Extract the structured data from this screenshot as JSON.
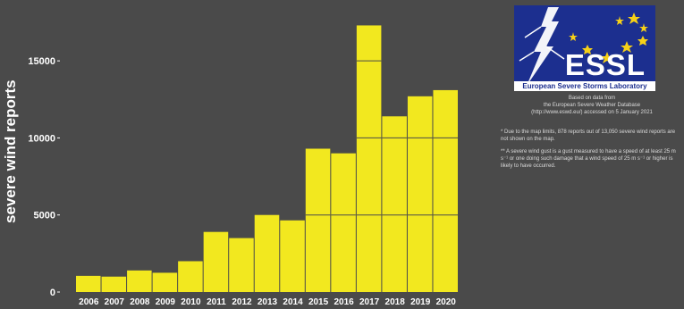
{
  "chart_data": {
    "type": "bar",
    "categories": [
      "2006",
      "2007",
      "2008",
      "2009",
      "2010",
      "2011",
      "2012",
      "2013",
      "2014",
      "2015",
      "2016",
      "2017",
      "2018",
      "2019",
      "2020"
    ],
    "values": [
      1050,
      1000,
      1400,
      1250,
      2000,
      3900,
      3500,
      5000,
      4650,
      9300,
      9000,
      17300,
      11400,
      12700,
      13100
    ],
    "ylabel": "severe wind reports",
    "xlabel": "",
    "title": "",
    "yticks": [
      0,
      5000,
      10000,
      15000
    ],
    "ytick_labels": [
      "0",
      "5000",
      "10000",
      "15000"
    ],
    "ylim": [
      0,
      17500
    ],
    "grid": false,
    "colors": {
      "bar": "#f2e81f",
      "bar_edge": "#4a4a4a",
      "background": "#4a4a4a",
      "text": "#ffffff"
    }
  },
  "logo": {
    "acronym": "ESSL",
    "name": "European Severe Storms Laboratory",
    "background": "#1c2f8f",
    "star_color": "#f7d117",
    "icon": "lightning-icon"
  },
  "source": {
    "line1": "Based on data from",
    "line2": "the European Severe Weather Database",
    "line3": "(http://www.eswd.eu/) accessed on 5 January 2021"
  },
  "notes": {
    "note1": "* Due to the map limits, 878 reports out of 13,050 severe wind reports are not shown on the map.",
    "note2": "** A severe wind gust is a gust measured to have a speed of at least 25 m s⁻¹ or one doing such damage that a wind speed of 25 m s⁻¹ or higher is likely to have occurred."
  }
}
